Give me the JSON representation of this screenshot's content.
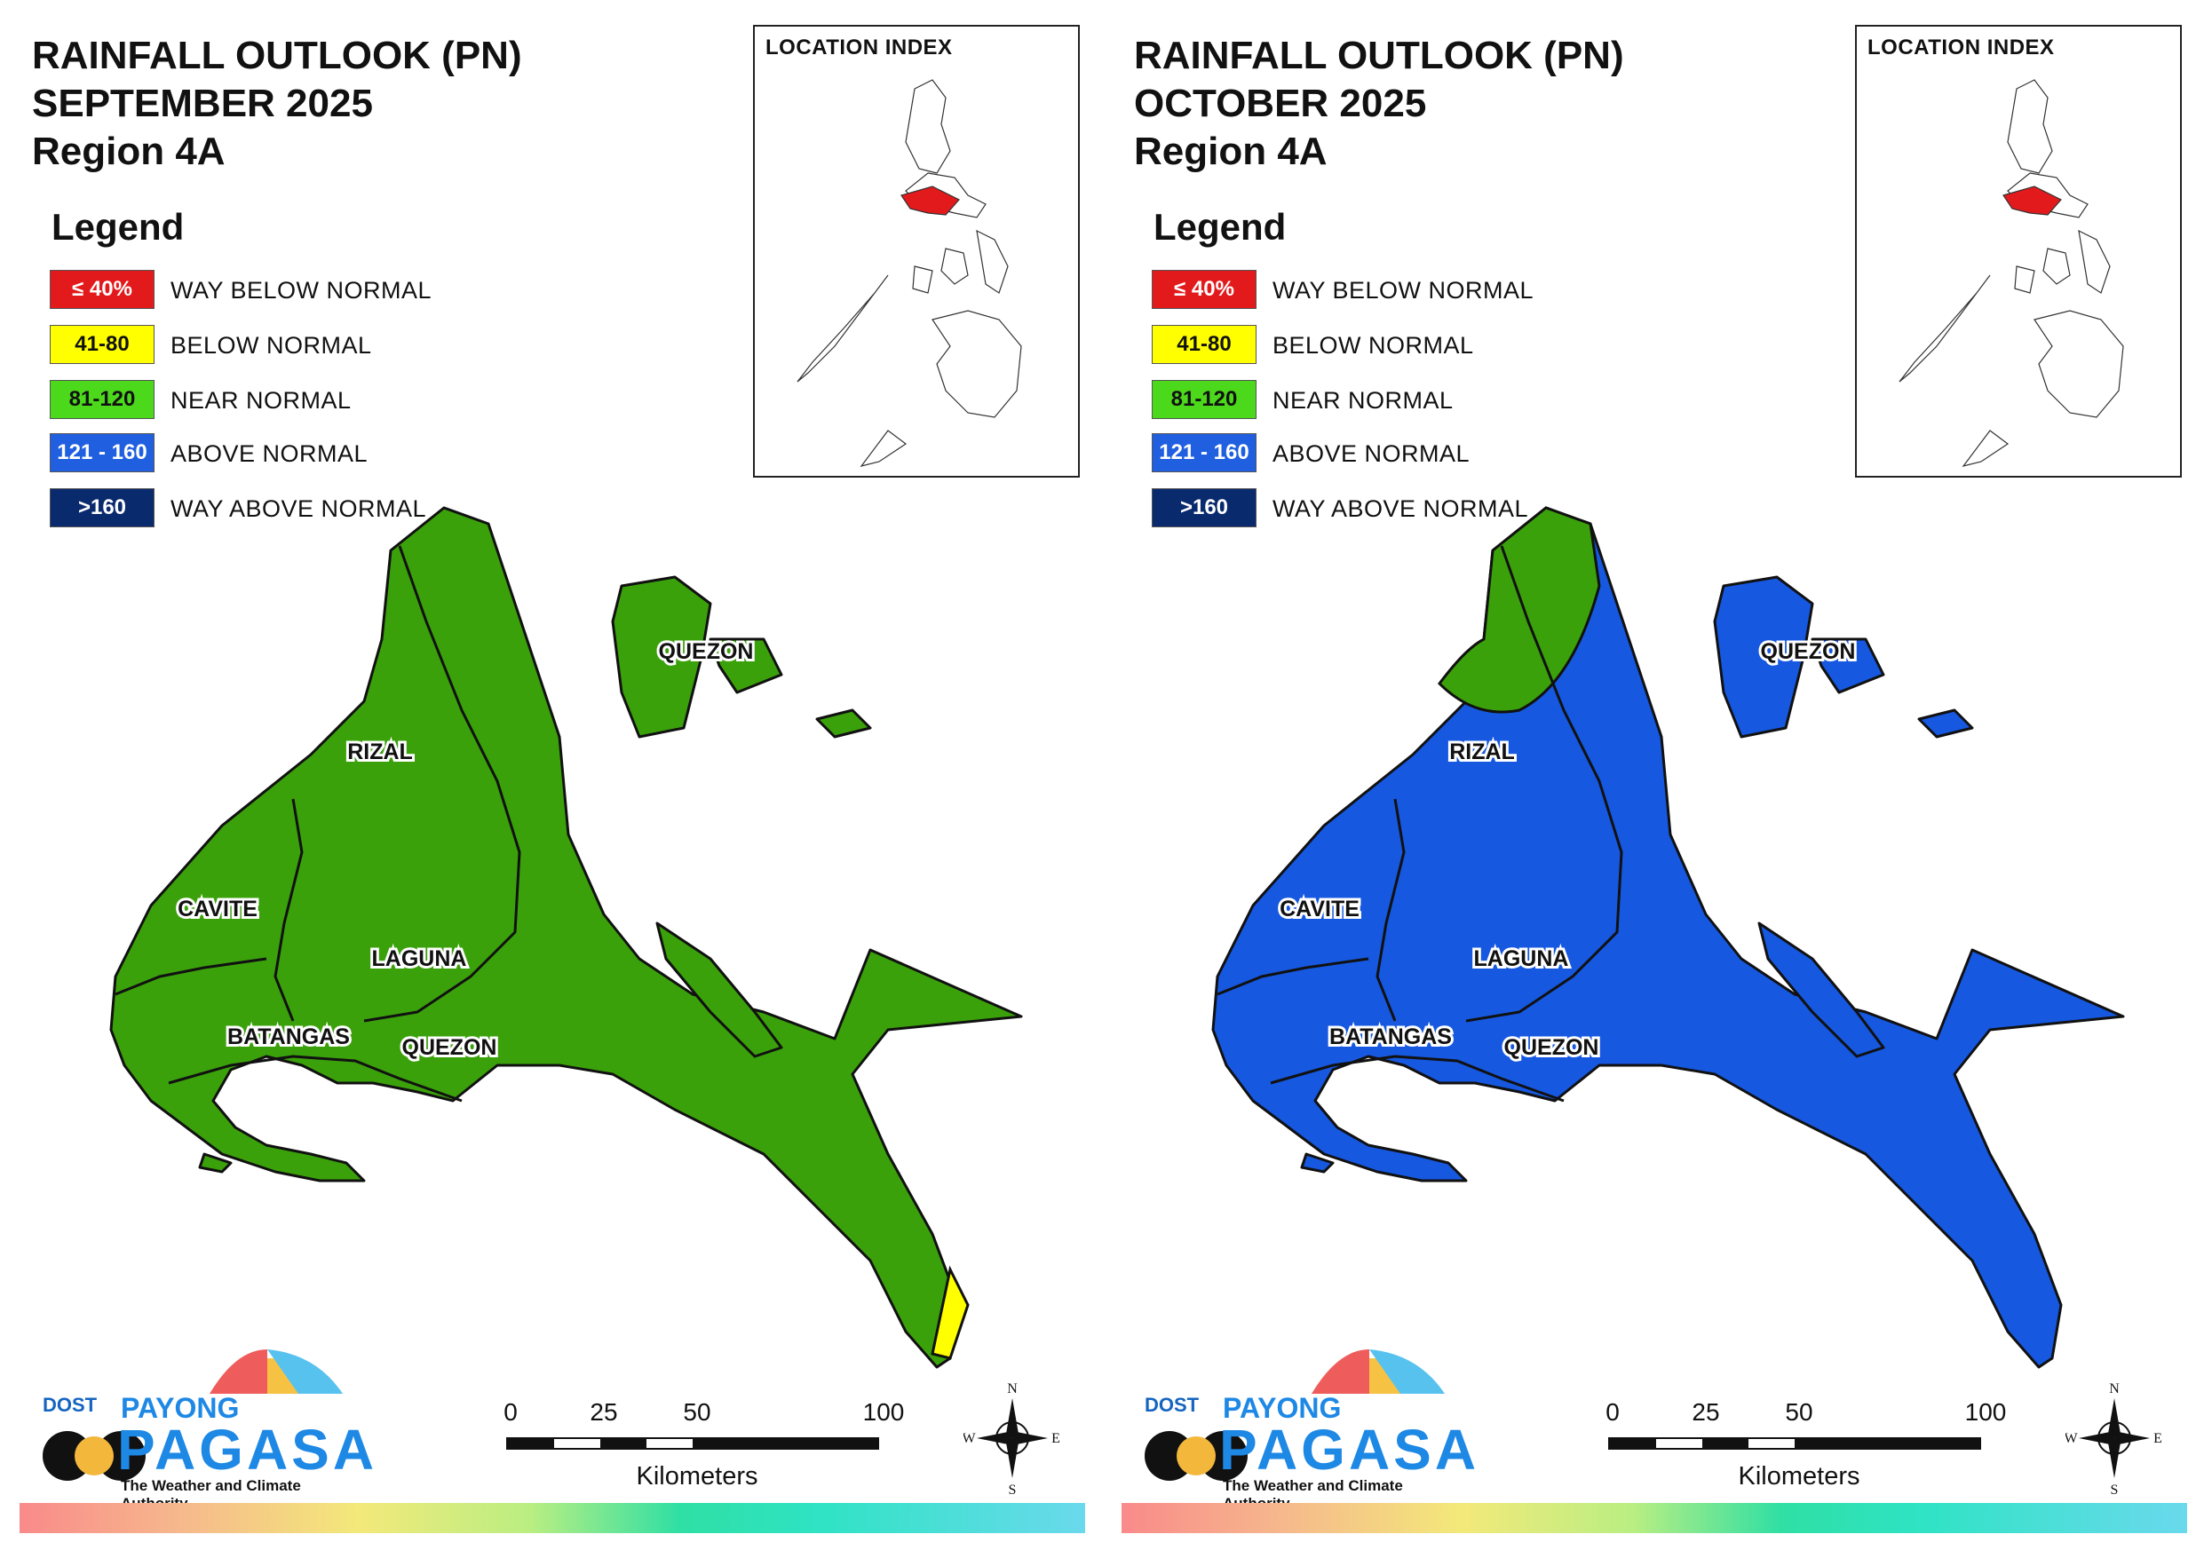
{
  "panels": [
    {
      "title_line1": "RAINFALL OUTLOOK (PN)",
      "title_line2": "SEPTEMBER 2025",
      "title_line3": "Region 4A",
      "legend_title": "Legend",
      "legend": [
        {
          "range": "≤ 40%",
          "label": "WAY BELOW NORMAL",
          "color": "#e31a1c",
          "text_color": "#ffffff"
        },
        {
          "range": "41-80",
          "label": "BELOW NORMAL",
          "color": "#ffff00",
          "text_color": "#111111"
        },
        {
          "range": "81-120",
          "label": "NEAR NORMAL",
          "color": "#4cd91c",
          "text_color": "#111111"
        },
        {
          "range": "121 - 160",
          "label": "ABOVE NORMAL",
          "color": "#1f5fe0",
          "text_color": "#ffffff"
        },
        {
          "range": ">160",
          "label": "WAY ABOVE NORMAL",
          "color": "#0a2a6e",
          "text_color": "#ffffff"
        }
      ],
      "location_index_title": "LOCATION INDEX",
      "region_highlight_color": "#e31a1c",
      "map_fill_color": "#3ba10b",
      "map_accent_color": "#ffff00",
      "provinces": [
        "QUEZON",
        "RIZAL",
        "CAVITE",
        "LAGUNA",
        "BATANGAS",
        "QUEZON"
      ],
      "scale_ticks": [
        "0",
        "25",
        "50",
        "100"
      ],
      "scale_unit": "Kilometers",
      "compass_letters": {
        "n": "N",
        "s": "S",
        "e": "E",
        "w": "W"
      },
      "logo": {
        "dost": "DOST",
        "payong": "PAYONG",
        "pagasa": "PAGASA",
        "tagline": "The Weather and Climate Authority"
      }
    },
    {
      "title_line1": "RAINFALL OUTLOOK (PN)",
      "title_line2": "OCTOBER 2025",
      "title_line3": "Region 4A",
      "legend_title": "Legend",
      "legend": [
        {
          "range": "≤ 40%",
          "label": "WAY BELOW NORMAL",
          "color": "#e31a1c",
          "text_color": "#ffffff"
        },
        {
          "range": "41-80",
          "label": "BELOW NORMAL",
          "color": "#ffff00",
          "text_color": "#111111"
        },
        {
          "range": "81-120",
          "label": "NEAR NORMAL",
          "color": "#4cd91c",
          "text_color": "#111111"
        },
        {
          "range": "121 - 160",
          "label": "ABOVE NORMAL",
          "color": "#1f5fe0",
          "text_color": "#ffffff"
        },
        {
          "range": ">160",
          "label": "WAY ABOVE NORMAL",
          "color": "#0a2a6e",
          "text_color": "#ffffff"
        }
      ],
      "location_index_title": "LOCATION INDEX",
      "region_highlight_color": "#e31a1c",
      "map_fill_color": "#1658e0",
      "map_accent_color": "#3ba10b",
      "provinces": [
        "QUEZON",
        "RIZAL",
        "CAVITE",
        "LAGUNA",
        "BATANGAS",
        "QUEZON"
      ],
      "scale_ticks": [
        "0",
        "25",
        "50",
        "100"
      ],
      "scale_unit": "Kilometers",
      "compass_letters": {
        "n": "N",
        "s": "S",
        "e": "E",
        "w": "W"
      },
      "logo": {
        "dost": "DOST",
        "payong": "PAYONG",
        "pagasa": "PAGASA",
        "tagline": "The Weather and Climate Authority"
      }
    }
  ]
}
